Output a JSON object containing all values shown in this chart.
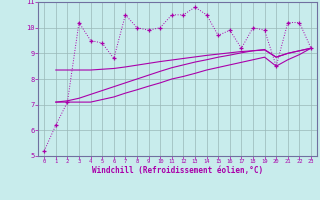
{
  "xlabel": "Windchill (Refroidissement éolien,°C)",
  "background_color": "#c8ecec",
  "grid_color": "#9ab8b8",
  "line_color": "#aa00aa",
  "spine_color": "#7070a0",
  "x_values": [
    0,
    1,
    2,
    3,
    4,
    5,
    6,
    7,
    8,
    9,
    10,
    11,
    12,
    13,
    14,
    15,
    16,
    17,
    18,
    19,
    20,
    21,
    22,
    23
  ],
  "y_main": [
    5.2,
    6.2,
    7.1,
    10.2,
    9.5,
    9.4,
    8.8,
    10.5,
    10.0,
    9.9,
    10.0,
    10.5,
    10.5,
    10.8,
    10.5,
    9.7,
    9.9,
    9.2,
    10.0,
    9.9,
    8.5,
    10.2,
    10.2,
    9.2
  ],
  "y_line1": [
    7.1,
    7.1,
    7.1,
    7.1,
    7.1,
    7.2,
    7.3,
    7.45,
    7.58,
    7.72,
    7.85,
    8.0,
    8.1,
    8.22,
    8.35,
    8.45,
    8.55,
    8.65,
    8.75,
    8.85,
    8.5,
    8.75,
    8.95,
    9.2
  ],
  "y_line2": [
    7.1,
    7.1,
    7.15,
    7.25,
    7.4,
    7.55,
    7.7,
    7.85,
    8.0,
    8.15,
    8.3,
    8.44,
    8.55,
    8.66,
    8.75,
    8.85,
    8.93,
    9.02,
    9.1,
    9.15,
    8.85,
    9.0,
    9.1,
    9.2
  ],
  "y_line3": [
    8.35,
    8.35,
    8.35,
    8.35,
    8.35,
    8.38,
    8.41,
    8.47,
    8.54,
    8.61,
    8.68,
    8.74,
    8.8,
    8.86,
    8.92,
    8.97,
    9.02,
    9.07,
    9.1,
    9.13,
    8.85,
    9.0,
    9.1,
    9.2
  ],
  "x_line_start": 1,
  "xlim": [
    -0.5,
    23.5
  ],
  "ylim": [
    5,
    11
  ],
  "yticks": [
    5,
    6,
    7,
    8,
    9,
    10,
    11
  ],
  "xticks": [
    0,
    1,
    2,
    3,
    4,
    5,
    6,
    7,
    8,
    9,
    10,
    11,
    12,
    13,
    14,
    15,
    16,
    17,
    18,
    19,
    20,
    21,
    22,
    23
  ]
}
